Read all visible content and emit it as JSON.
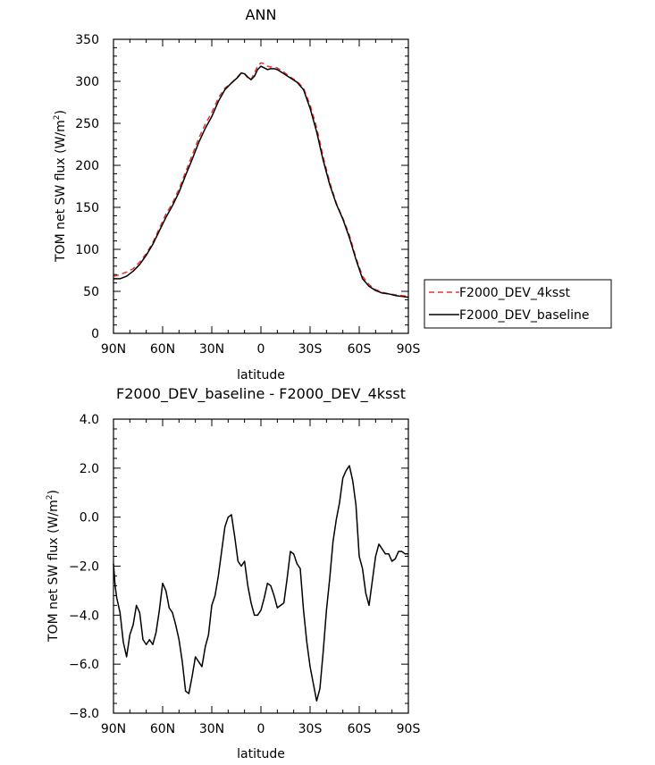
{
  "chart_data": [
    {
      "type": "line",
      "title": "ANN",
      "xlabel": "latitude",
      "ylabel": "TOM net SW flux (W/m",
      "ylabel_sup": "2",
      "ylabel_close": ")",
      "x_ticks": [
        {
          "lat": 90,
          "label": "90N"
        },
        {
          "lat": 60,
          "label": "60N"
        },
        {
          "lat": 30,
          "label": "30N"
        },
        {
          "lat": 0,
          "label": "0"
        },
        {
          "lat": -30,
          "label": "30S"
        },
        {
          "lat": -60,
          "label": "60S"
        },
        {
          "lat": -90,
          "label": "90S"
        }
      ],
      "xlim": [
        90,
        -90
      ],
      "ylim": [
        0,
        350
      ],
      "y_ticks": [
        {
          "value": 0,
          "label": "0"
        },
        {
          "value": 50,
          "label": "50"
        },
        {
          "value": 100,
          "label": "100"
        },
        {
          "value": 150,
          "label": "150"
        },
        {
          "value": 200,
          "label": "200"
        },
        {
          "value": 250,
          "label": "250"
        },
        {
          "value": 300,
          "label": "300"
        },
        {
          "value": 350,
          "label": "350"
        }
      ],
      "legend_position": "right",
      "series": [
        {
          "name": "F2000_DEV_4ksst",
          "color": "#e8332c",
          "dash": true,
          "x": [
            90,
            86,
            82,
            78,
            74,
            70,
            66,
            62,
            58,
            54,
            50,
            46,
            42,
            38,
            34,
            30,
            26,
            22,
            18,
            14,
            12,
            10,
            8,
            6,
            4,
            2,
            0,
            -2,
            -4,
            -6,
            -8,
            -10,
            -14,
            -18,
            -22,
            -26,
            -30,
            -34,
            -38,
            -42,
            -46,
            -50,
            -54,
            -58,
            -62,
            -66,
            -70,
            -74,
            -78,
            -82,
            -86,
            -90
          ],
          "y": [
            68,
            70,
            73,
            77,
            85,
            95,
            108,
            125,
            142,
            155,
            172,
            192,
            212,
            232,
            249,
            263,
            280,
            292,
            298,
            306,
            310,
            309,
            304,
            302,
            310,
            318,
            322,
            321,
            318,
            317,
            317,
            316,
            311,
            305,
            300,
            292,
            272,
            245,
            210,
            180,
            155,
            137,
            117,
            90,
            68,
            58,
            52,
            49,
            47,
            46,
            45,
            44
          ]
        },
        {
          "name": "F2000_DEV_baseline",
          "color": "#000000",
          "dash": false,
          "x": [
            90,
            86,
            82,
            78,
            74,
            70,
            66,
            62,
            58,
            54,
            50,
            46,
            42,
            38,
            34,
            30,
            26,
            22,
            18,
            14,
            12,
            10,
            8,
            6,
            4,
            2,
            0,
            -2,
            -4,
            -6,
            -8,
            -10,
            -14,
            -18,
            -22,
            -26,
            -30,
            -34,
            -38,
            -42,
            -46,
            -50,
            -54,
            -58,
            -62,
            -66,
            -70,
            -74,
            -78,
            -82,
            -86,
            -90
          ],
          "y": [
            65,
            65,
            68,
            74,
            82,
            93,
            106,
            122,
            138,
            152,
            168,
            188,
            207,
            227,
            244,
            258,
            276,
            290,
            298,
            305,
            310,
            309,
            305,
            302,
            306,
            314,
            318,
            316,
            314,
            315,
            315,
            314,
            309,
            304,
            299,
            290,
            268,
            240,
            206,
            177,
            154,
            136,
            114,
            88,
            65,
            56,
            51,
            48,
            47,
            45,
            44,
            43
          ]
        }
      ]
    },
    {
      "type": "line",
      "title": "F2000_DEV_baseline - F2000_DEV_4ksst",
      "xlabel": "latitude",
      "ylabel": "TOM net SW flux (W/m",
      "ylabel_sup": "2",
      "ylabel_close": ")",
      "x_ticks": [
        {
          "lat": 90,
          "label": "90N"
        },
        {
          "lat": 60,
          "label": "60N"
        },
        {
          "lat": 30,
          "label": "30N"
        },
        {
          "lat": 0,
          "label": "0"
        },
        {
          "lat": -30,
          "label": "30S"
        },
        {
          "lat": -60,
          "label": "60S"
        },
        {
          "lat": -90,
          "label": "90S"
        }
      ],
      "xlim": [
        90,
        -90
      ],
      "ylim": [
        -8.0,
        4.0
      ],
      "y_ticks": [
        {
          "value": -8,
          "label": "−8.0"
        },
        {
          "value": -6,
          "label": "−6.0"
        },
        {
          "value": -4,
          "label": "−4.0"
        },
        {
          "value": -2,
          "label": "−2.0"
        },
        {
          "value": 0,
          "label": "0.0"
        },
        {
          "value": 2,
          "label": "2.0"
        },
        {
          "value": 4,
          "label": "4.0"
        }
      ],
      "series": [
        {
          "color": "#000000",
          "x": [
            90,
            89,
            88,
            86,
            84,
            82,
            80,
            78,
            76,
            74,
            72,
            70,
            68,
            66,
            64,
            62,
            60,
            58,
            56,
            54,
            52,
            50,
            48,
            46,
            44,
            42,
            40,
            38,
            36,
            34,
            32,
            30,
            28,
            26,
            24,
            22,
            20,
            18,
            16,
            14,
            12,
            10,
            8,
            6,
            4,
            2,
            0,
            -2,
            -4,
            -6,
            -8,
            -10,
            -12,
            -14,
            -16,
            -18,
            -20,
            -22,
            -24,
            -26,
            -28,
            -30,
            -32,
            -34,
            -36,
            -38,
            -40,
            -42,
            -44,
            -46,
            -48,
            -50,
            -52,
            -54,
            -56,
            -58,
            -60,
            -62,
            -64,
            -66,
            -68,
            -70,
            -72,
            -74,
            -76,
            -78,
            -80,
            -82,
            -84,
            -86,
            -88,
            -90
          ],
          "y": [
            -1.9,
            -2.8,
            -3.3,
            -3.9,
            -5.1,
            -5.7,
            -4.8,
            -4.4,
            -3.6,
            -3.9,
            -5.0,
            -5.2,
            -5.0,
            -5.2,
            -4.7,
            -3.8,
            -2.7,
            -3.0,
            -3.7,
            -3.9,
            -4.4,
            -5.0,
            -5.9,
            -7.1,
            -7.2,
            -6.5,
            -5.7,
            -5.9,
            -6.1,
            -5.3,
            -4.8,
            -3.6,
            -3.2,
            -2.4,
            -1.4,
            -0.4,
            0.0,
            0.1,
            -0.8,
            -1.8,
            -2.0,
            -1.8,
            -2.8,
            -3.5,
            -4.0,
            -4.0,
            -3.8,
            -3.3,
            -2.7,
            -2.8,
            -3.2,
            -3.7,
            -3.6,
            -3.5,
            -2.5,
            -1.4,
            -1.5,
            -1.9,
            -2.1,
            -3.8,
            -5.1,
            -6.1,
            -6.8,
            -7.5,
            -7.0,
            -5.5,
            -3.8,
            -2.5,
            -1.0,
            -0.1,
            0.6,
            1.6,
            1.9,
            2.1,
            1.5,
            0.5,
            -1.6,
            -2.1,
            -3.1,
            -3.6,
            -2.6,
            -1.6,
            -1.1,
            -1.3,
            -1.5,
            -1.5,
            -1.8,
            -1.7,
            -1.4,
            -1.4,
            -1.5,
            -1.5
          ]
        }
      ]
    }
  ]
}
